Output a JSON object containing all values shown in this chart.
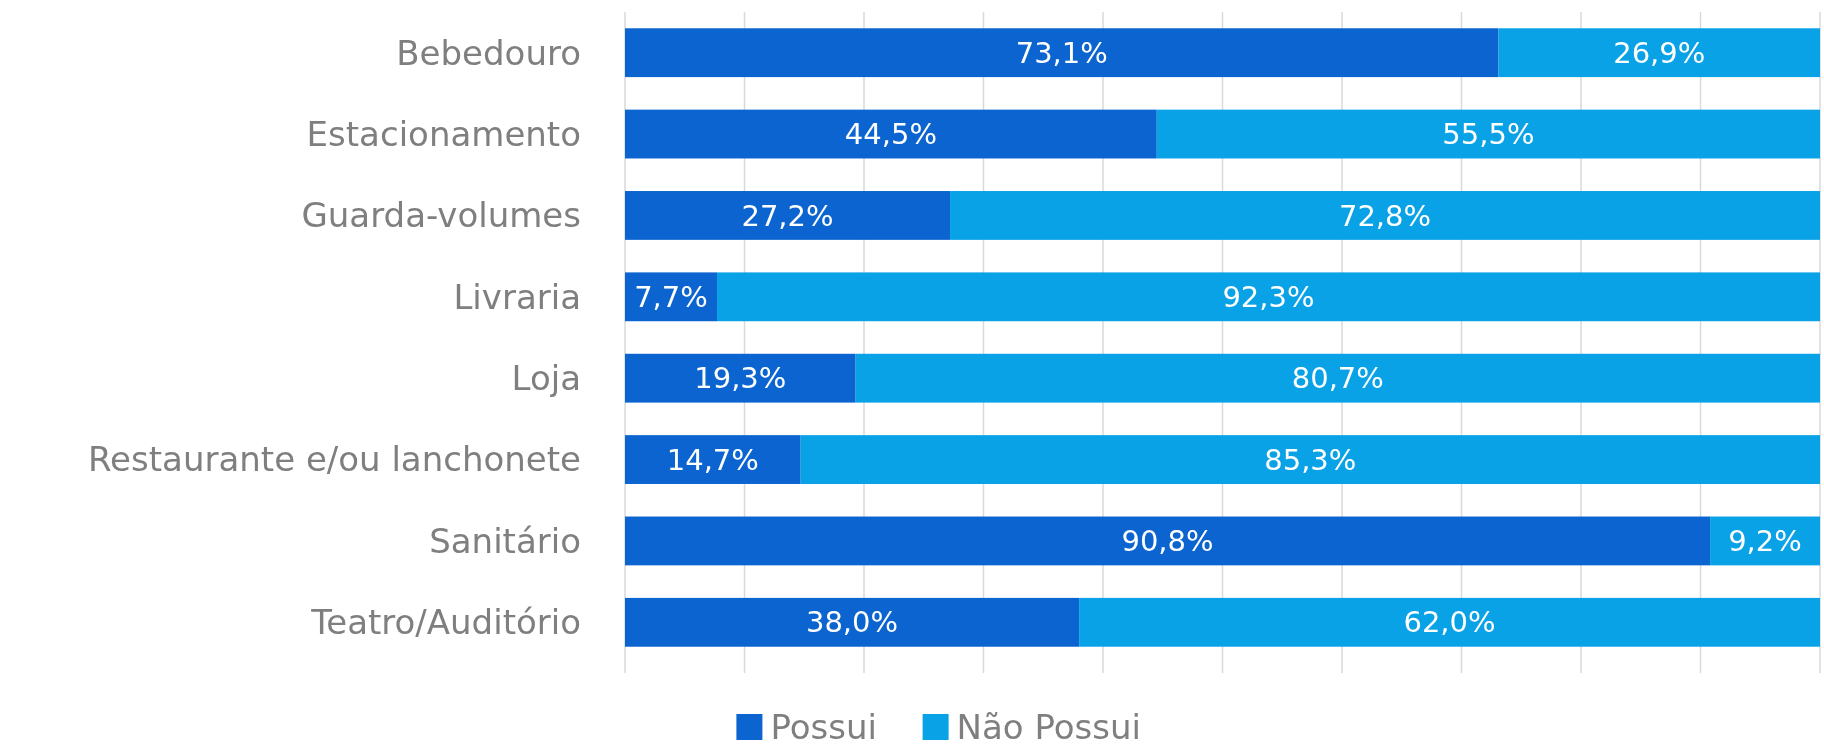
{
  "chart_data": {
    "type": "bar",
    "orientation": "horizontal",
    "stacked": true,
    "categories": [
      "Bebedouro",
      "Estacionamento",
      "Guarda-volumes",
      "Livraria",
      "Loja",
      "Restaurante e/ou lanchonete",
      "Sanitário",
      "Teatro/Auditório"
    ],
    "series": [
      {
        "name": "Possui",
        "color": "#0b64cf",
        "values": [
          73.1,
          44.5,
          27.2,
          7.7,
          19.3,
          14.7,
          90.8,
          38.0
        ],
        "value_labels": [
          "73,1%",
          "44,5%",
          "27,2%",
          "7,7%",
          "19,3%",
          "14,7%",
          "90,8%",
          "38,0%"
        ]
      },
      {
        "name": "Não Possui",
        "color": "#0aa2e6",
        "values": [
          26.9,
          55.5,
          72.8,
          92.3,
          80.7,
          85.3,
          9.2,
          62.0
        ],
        "value_labels": [
          "26,9%",
          "55,5%",
          "72,8%",
          "92,3%",
          "80,7%",
          "85,3%",
          "9,2%",
          "62,0%"
        ]
      }
    ],
    "xlim": [
      0,
      100
    ],
    "xticks": [
      {
        "value": 0,
        "label": null
      },
      {
        "value": 10,
        "label": null
      },
      {
        "value": 20,
        "label": null
      },
      {
        "value": 30,
        "label": null
      },
      {
        "value": 40,
        "label": null
      },
      {
        "value": 50,
        "label": null
      },
      {
        "value": 60,
        "label": null
      },
      {
        "value": 70,
        "label": null
      },
      {
        "value": 80,
        "label": null
      },
      {
        "value": 90,
        "label": null
      },
      {
        "value": 100,
        "label": null
      }
    ],
    "grid": "x",
    "legend": "bottom",
    "tick_labels": "y"
  }
}
